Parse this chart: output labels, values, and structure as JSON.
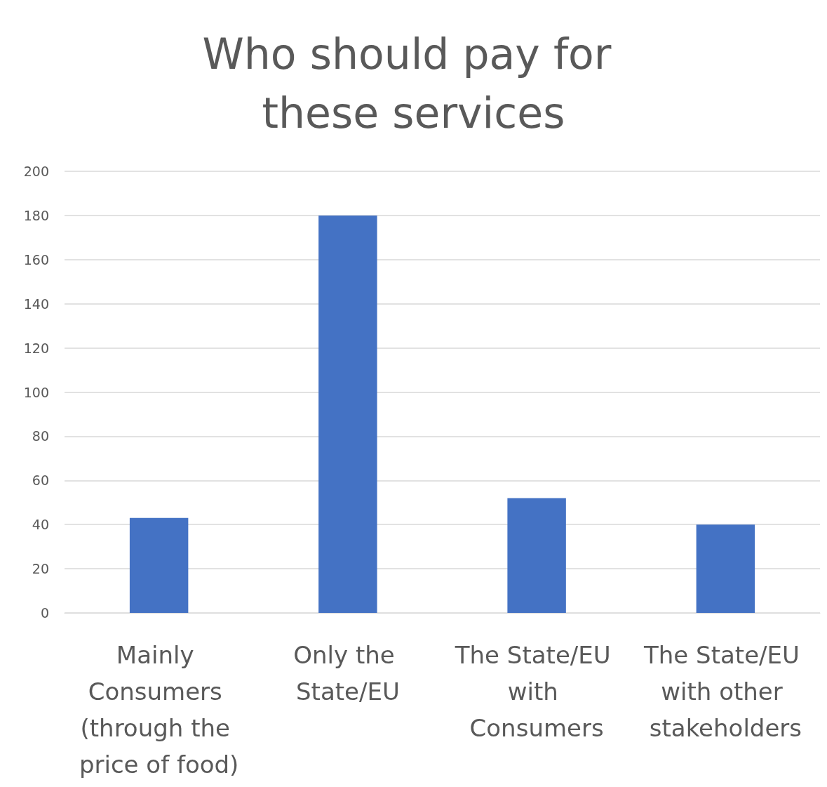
{
  "chart_data": {
    "type": "bar",
    "title": "Who should pay for these services",
    "categories": [
      "Mainly Consumers (through the price of food)",
      "Only the State/EU",
      "The State/EU with Consumers",
      "The State/EU with other stakeholders"
    ],
    "values": [
      43,
      180,
      52,
      40
    ],
    "color": "#4472c4",
    "ylim": [
      0,
      200
    ],
    "yticks": [
      0,
      20,
      40,
      60,
      80,
      100,
      120,
      140,
      160,
      180,
      200
    ],
    "grid": "y"
  }
}
